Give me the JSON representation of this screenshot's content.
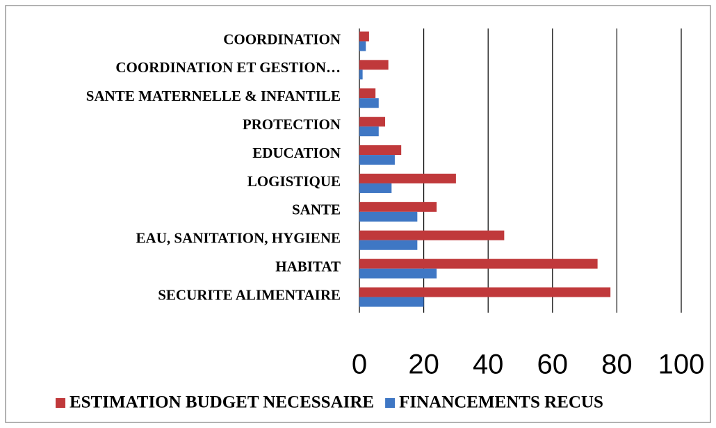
{
  "chart_data": {
    "type": "bar",
    "orientation": "horizontal",
    "categories": [
      "COORDINATION",
      "COORDINATION ET GESTION…",
      "SANTE MATERNELLE & INFANTILE",
      "PROTECTION",
      "EDUCATION",
      "LOGISTIQUE",
      "SANTE",
      "EAU, SANITATION, HYGIENE",
      "HABITAT",
      "SECURITE ALIMENTAIRE"
    ],
    "series": [
      {
        "name": "ESTIMATION BUDGET NECESSAIRE",
        "color": "#c0393b",
        "values": [
          3,
          9,
          5,
          8,
          13,
          30,
          24,
          45,
          74,
          78
        ]
      },
      {
        "name": "FINANCEMENTS RECUS",
        "color": "#3f77c4",
        "values": [
          2,
          1,
          6,
          6,
          11,
          10,
          18,
          18,
          24,
          20
        ]
      }
    ],
    "xlim": [
      0,
      100
    ],
    "xticks": [
      0,
      20,
      40,
      60,
      80,
      100
    ],
    "grid": true,
    "legend": "bottom"
  }
}
